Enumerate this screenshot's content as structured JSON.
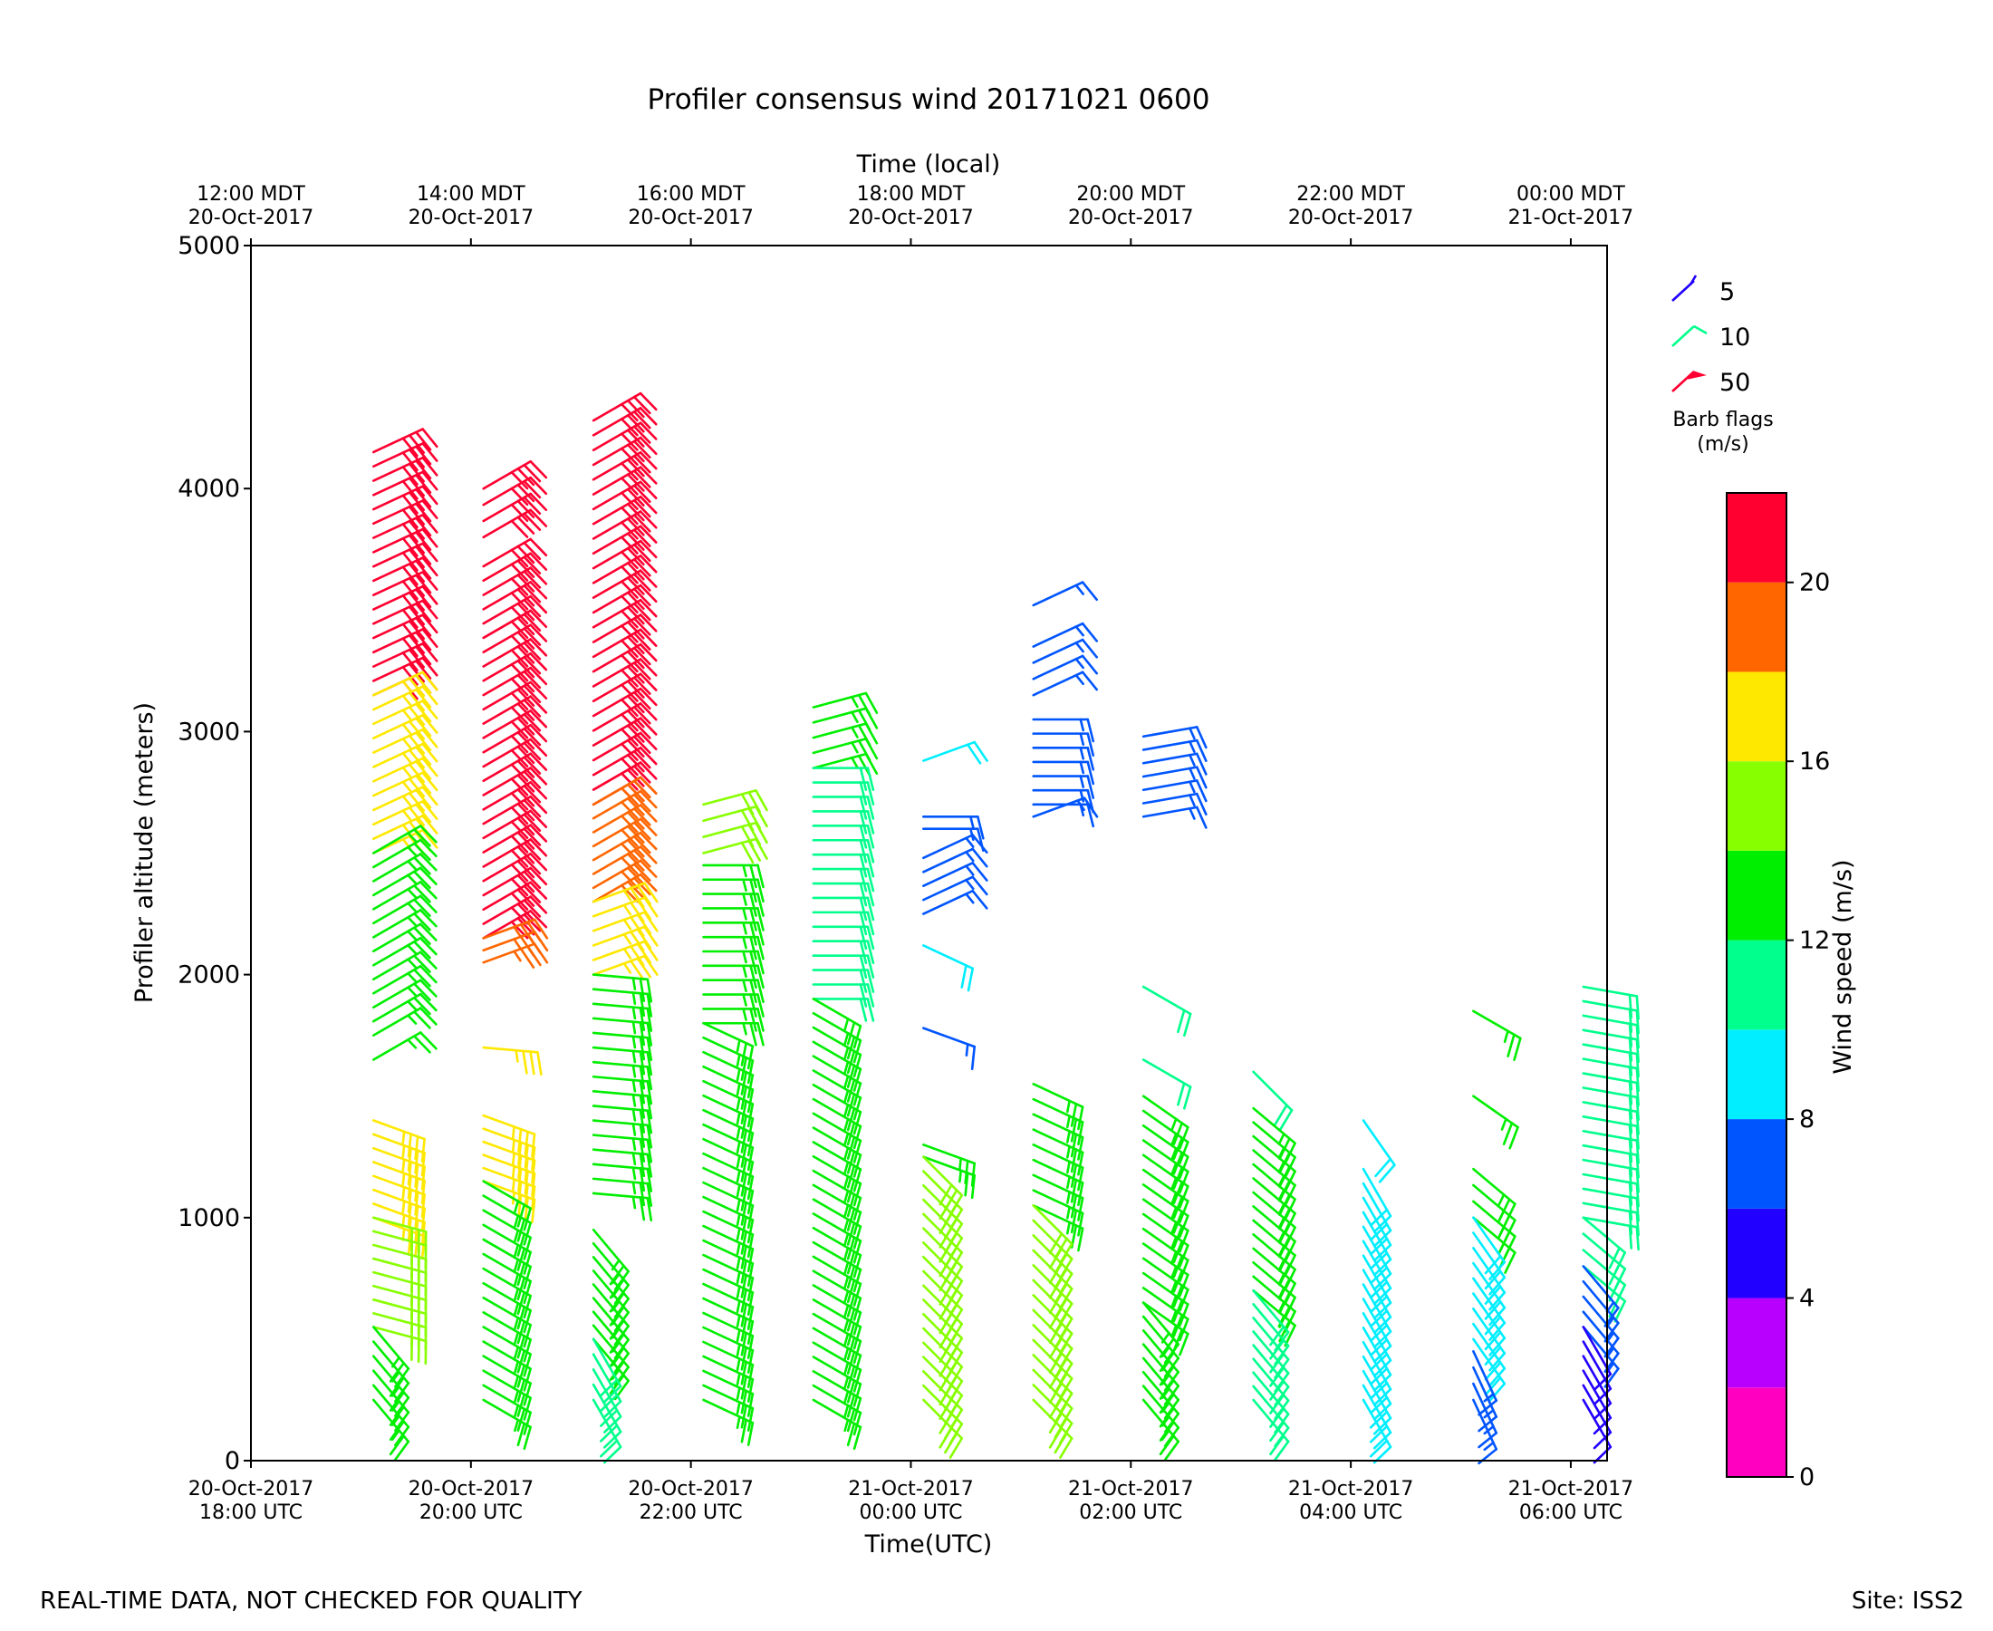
{
  "chart_data": {
    "type": "wind-barb profile",
    "title": "Profiler consensus wind 20171021 0600",
    "xlabel_bottom": "Time(UTC)",
    "xlabel_top": "Time (local)",
    "ylabel": "Profiler altitude (meters)",
    "ylim": [
      0,
      5000
    ],
    "y_ticks": [
      0,
      1000,
      2000,
      3000,
      4000,
      5000
    ],
    "x_range_hours": [
      0,
      12.33
    ],
    "x_ticks_bottom": [
      {
        "t": 0,
        "line1": "20-Oct-2017",
        "line2": "18:00 UTC"
      },
      {
        "t": 2,
        "line1": "20-Oct-2017",
        "line2": "20:00 UTC"
      },
      {
        "t": 4,
        "line1": "20-Oct-2017",
        "line2": "22:00 UTC"
      },
      {
        "t": 6,
        "line1": "21-Oct-2017",
        "line2": "00:00 UTC"
      },
      {
        "t": 8,
        "line1": "21-Oct-2017",
        "line2": "02:00 UTC"
      },
      {
        "t": 10,
        "line1": "21-Oct-2017",
        "line2": "04:00 UTC"
      },
      {
        "t": 12,
        "line1": "21-Oct-2017",
        "line2": "06:00 UTC"
      }
    ],
    "x_ticks_top": [
      {
        "t": 0,
        "line1": "12:00 MDT",
        "line2": "20-Oct-2017"
      },
      {
        "t": 2,
        "line1": "14:00 MDT",
        "line2": "20-Oct-2017"
      },
      {
        "t": 4,
        "line1": "16:00 MDT",
        "line2": "20-Oct-2017"
      },
      {
        "t": 6,
        "line1": "18:00 MDT",
        "line2": "20-Oct-2017"
      },
      {
        "t": 8,
        "line1": "20:00 MDT",
        "line2": "20-Oct-2017"
      },
      {
        "t": 10,
        "line1": "22:00 MDT",
        "line2": "20-Oct-2017"
      },
      {
        "t": 12,
        "line1": "00:00 MDT",
        "line2": "21-Oct-2017"
      }
    ],
    "colorbar": {
      "label": "Wind speed (m/s)",
      "ticks": [
        0,
        4,
        8,
        12,
        16,
        20
      ],
      "range": [
        0,
        22
      ],
      "bands": [
        {
          "from": 0,
          "to": 2,
          "color": "#ff00c0"
        },
        {
          "from": 2,
          "to": 4,
          "color": "#b800ff"
        },
        {
          "from": 4,
          "to": 6,
          "color": "#2200ff"
        },
        {
          "from": 6,
          "to": 8,
          "color": "#0055ff"
        },
        {
          "from": 8,
          "to": 10,
          "color": "#00eeff"
        },
        {
          "from": 10,
          "to": 12,
          "color": "#00ff8c"
        },
        {
          "from": 12,
          "to": 14,
          "color": "#00ee00"
        },
        {
          "from": 14,
          "to": 16,
          "color": "#88ff00"
        },
        {
          "from": 16,
          "to": 18,
          "color": "#ffe800"
        },
        {
          "from": 18,
          "to": 20,
          "color": "#ff6600"
        },
        {
          "from": 20,
          "to": 22,
          "color": "#ff0030"
        }
      ]
    },
    "barb_legend": {
      "title_line1": "Barb flags",
      "title_line2": "(m/s)",
      "entries": [
        {
          "value": "5",
          "color": "#2200ff",
          "kind": "half"
        },
        {
          "value": "10",
          "color": "#00ff8c",
          "kind": "full"
        },
        {
          "value": "50",
          "color": "#ff0030",
          "kind": "flag"
        }
      ]
    },
    "series": [
      {
        "t": 0.62,
        "segments": [
          {
            "from": 4150,
            "to": 3150,
            "speed": 20.5,
            "dir": 245
          },
          {
            "from": 3150,
            "to": 2500,
            "speed": 16.5,
            "dir": 245
          },
          {
            "from": 2500,
            "to": 1750,
            "speed": 13,
            "dir": 240
          },
          {
            "from": 1650,
            "to": 1650,
            "speed": 13,
            "dir": 240
          },
          {
            "from": 1400,
            "to": 1000,
            "speed": 16.5,
            "dir": 290
          },
          {
            "from": 1000,
            "to": 550,
            "speed": 14.5,
            "dir": 285
          },
          {
            "from": 550,
            "to": 250,
            "speed": 13,
            "dir": 320
          }
        ]
      },
      {
        "t": 1.62,
        "segments": [
          {
            "from": 4000,
            "to": 3800,
            "speed": 20.5,
            "dir": 240
          },
          {
            "from": 3680,
            "to": 2150,
            "speed": 21,
            "dir": 240
          },
          {
            "from": 2150,
            "to": 2050,
            "speed": 18.5,
            "dir": 250
          },
          {
            "from": 1700,
            "to": 1700,
            "speed": 16.5,
            "dir": 275
          },
          {
            "from": 1420,
            "to": 1150,
            "speed": 16.5,
            "dir": 290
          },
          {
            "from": 1150,
            "to": 250,
            "speed": 13,
            "dir": 300
          }
        ]
      },
      {
        "t": 2.62,
        "segments": [
          {
            "from": 4280,
            "to": 2700,
            "speed": 21,
            "dir": 240
          },
          {
            "from": 2700,
            "to": 2300,
            "speed": 19,
            "dir": 240
          },
          {
            "from": 2300,
            "to": 2000,
            "speed": 16.5,
            "dir": 250
          },
          {
            "from": 2000,
            "to": 1100,
            "speed": 13,
            "dir": 275
          },
          {
            "from": 950,
            "to": 500,
            "speed": 13,
            "dir": 320
          },
          {
            "from": 500,
            "to": 250,
            "speed": 11,
            "dir": 330
          }
        ]
      },
      {
        "t": 3.62,
        "segments": [
          {
            "from": 2700,
            "to": 2500,
            "speed": 15,
            "dir": 255
          },
          {
            "from": 2450,
            "to": 1800,
            "speed": 13,
            "dir": 270
          },
          {
            "from": 1800,
            "to": 250,
            "speed": 13,
            "dir": 295
          }
        ]
      },
      {
        "t": 4.62,
        "segments": [
          {
            "from": 3100,
            "to": 2850,
            "speed": 12,
            "dir": 255
          },
          {
            "from": 2850,
            "to": 1900,
            "speed": 11,
            "dir": 270
          },
          {
            "from": 1900,
            "to": 250,
            "speed": 12.5,
            "dir": 300
          }
        ]
      },
      {
        "t": 5.62,
        "segments": [
          {
            "from": 2880,
            "to": 2880,
            "speed": 9,
            "dir": 250
          },
          {
            "from": 2650,
            "to": 2600,
            "speed": 7.5,
            "dir": 270
          },
          {
            "from": 2480,
            "to": 2250,
            "speed": 7,
            "dir": 245
          },
          {
            "from": 2120,
            "to": 2120,
            "speed": 9,
            "dir": 295
          },
          {
            "from": 1780,
            "to": 1780,
            "speed": 7,
            "dir": 290
          },
          {
            "from": 1300,
            "to": 1250,
            "speed": 13,
            "dir": 290
          },
          {
            "from": 1250,
            "to": 250,
            "speed": 15,
            "dir": 315
          }
        ]
      },
      {
        "t": 6.62,
        "segments": [
          {
            "from": 3520,
            "to": 3520,
            "speed": 7,
            "dir": 245
          },
          {
            "from": 3350,
            "to": 3150,
            "speed": 7.5,
            "dir": 245
          },
          {
            "from": 3050,
            "to": 2700,
            "speed": 7,
            "dir": 270
          },
          {
            "from": 2650,
            "to": 2650,
            "speed": 7.5,
            "dir": 250
          },
          {
            "from": 1550,
            "to": 1050,
            "speed": 13,
            "dir": 295
          },
          {
            "from": 1050,
            "to": 250,
            "speed": 14.5,
            "dir": 315
          }
        ]
      },
      {
        "t": 7.62,
        "segments": [
          {
            "from": 2980,
            "to": 2650,
            "speed": 7.5,
            "dir": 260
          },
          {
            "from": 1950,
            "to": 1950,
            "speed": 11,
            "dir": 300
          },
          {
            "from": 1650,
            "to": 1650,
            "speed": 11,
            "dir": 300
          },
          {
            "from": 1500,
            "to": 650,
            "speed": 13,
            "dir": 305
          },
          {
            "from": 650,
            "to": 250,
            "speed": 12.5,
            "dir": 320
          }
        ]
      },
      {
        "t": 8.62,
        "segments": [
          {
            "from": 1600,
            "to": 1600,
            "speed": 11,
            "dir": 315
          },
          {
            "from": 1450,
            "to": 700,
            "speed": 13,
            "dir": 310
          },
          {
            "from": 700,
            "to": 250,
            "speed": 11,
            "dir": 320
          }
        ]
      },
      {
        "t": 9.62,
        "segments": [
          {
            "from": 1400,
            "to": 1400,
            "speed": 9,
            "dir": 325
          },
          {
            "from": 1200,
            "to": 250,
            "speed": 9,
            "dir": 330
          }
        ]
      },
      {
        "t": 10.62,
        "segments": [
          {
            "from": 1850,
            "to": 1850,
            "speed": 13,
            "dir": 300
          },
          {
            "from": 1500,
            "to": 1500,
            "speed": 13,
            "dir": 305
          },
          {
            "from": 1200,
            "to": 1000,
            "speed": 13,
            "dir": 310
          },
          {
            "from": 1000,
            "to": 500,
            "speed": 9,
            "dir": 325
          },
          {
            "from": 450,
            "to": 250,
            "speed": 6.5,
            "dir": 335
          }
        ]
      },
      {
        "t": 11.62,
        "segments": [
          {
            "from": 1950,
            "to": 1000,
            "speed": 11,
            "dir": 280
          },
          {
            "from": 1000,
            "to": 800,
            "speed": 11,
            "dir": 310
          },
          {
            "from": 800,
            "to": 550,
            "speed": 7,
            "dir": 320
          },
          {
            "from": 550,
            "to": 250,
            "speed": 5,
            "dir": 330
          }
        ]
      }
    ]
  },
  "footer": {
    "left": "REAL-TIME DATA, NOT CHECKED FOR QUALITY",
    "right": "Site: ISS2"
  }
}
